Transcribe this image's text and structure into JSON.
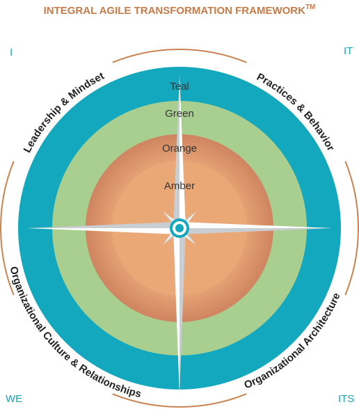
{
  "header": {
    "title": "INTEGRAL AGILE TRANSFORMATION FRAMEWORK",
    "trademark": "TM"
  },
  "quadrants": [
    {
      "corner": "I",
      "label": "Leadership & Mindset"
    },
    {
      "corner": "IT",
      "label": "Practices & Behavior"
    },
    {
      "corner": "WE",
      "label": "Organizational Culture & Relationships"
    },
    {
      "corner": "ITS",
      "label": "Organizational Architecture"
    }
  ],
  "rings": [
    "Teal",
    "Green",
    "Orange",
    "Amber"
  ]
}
